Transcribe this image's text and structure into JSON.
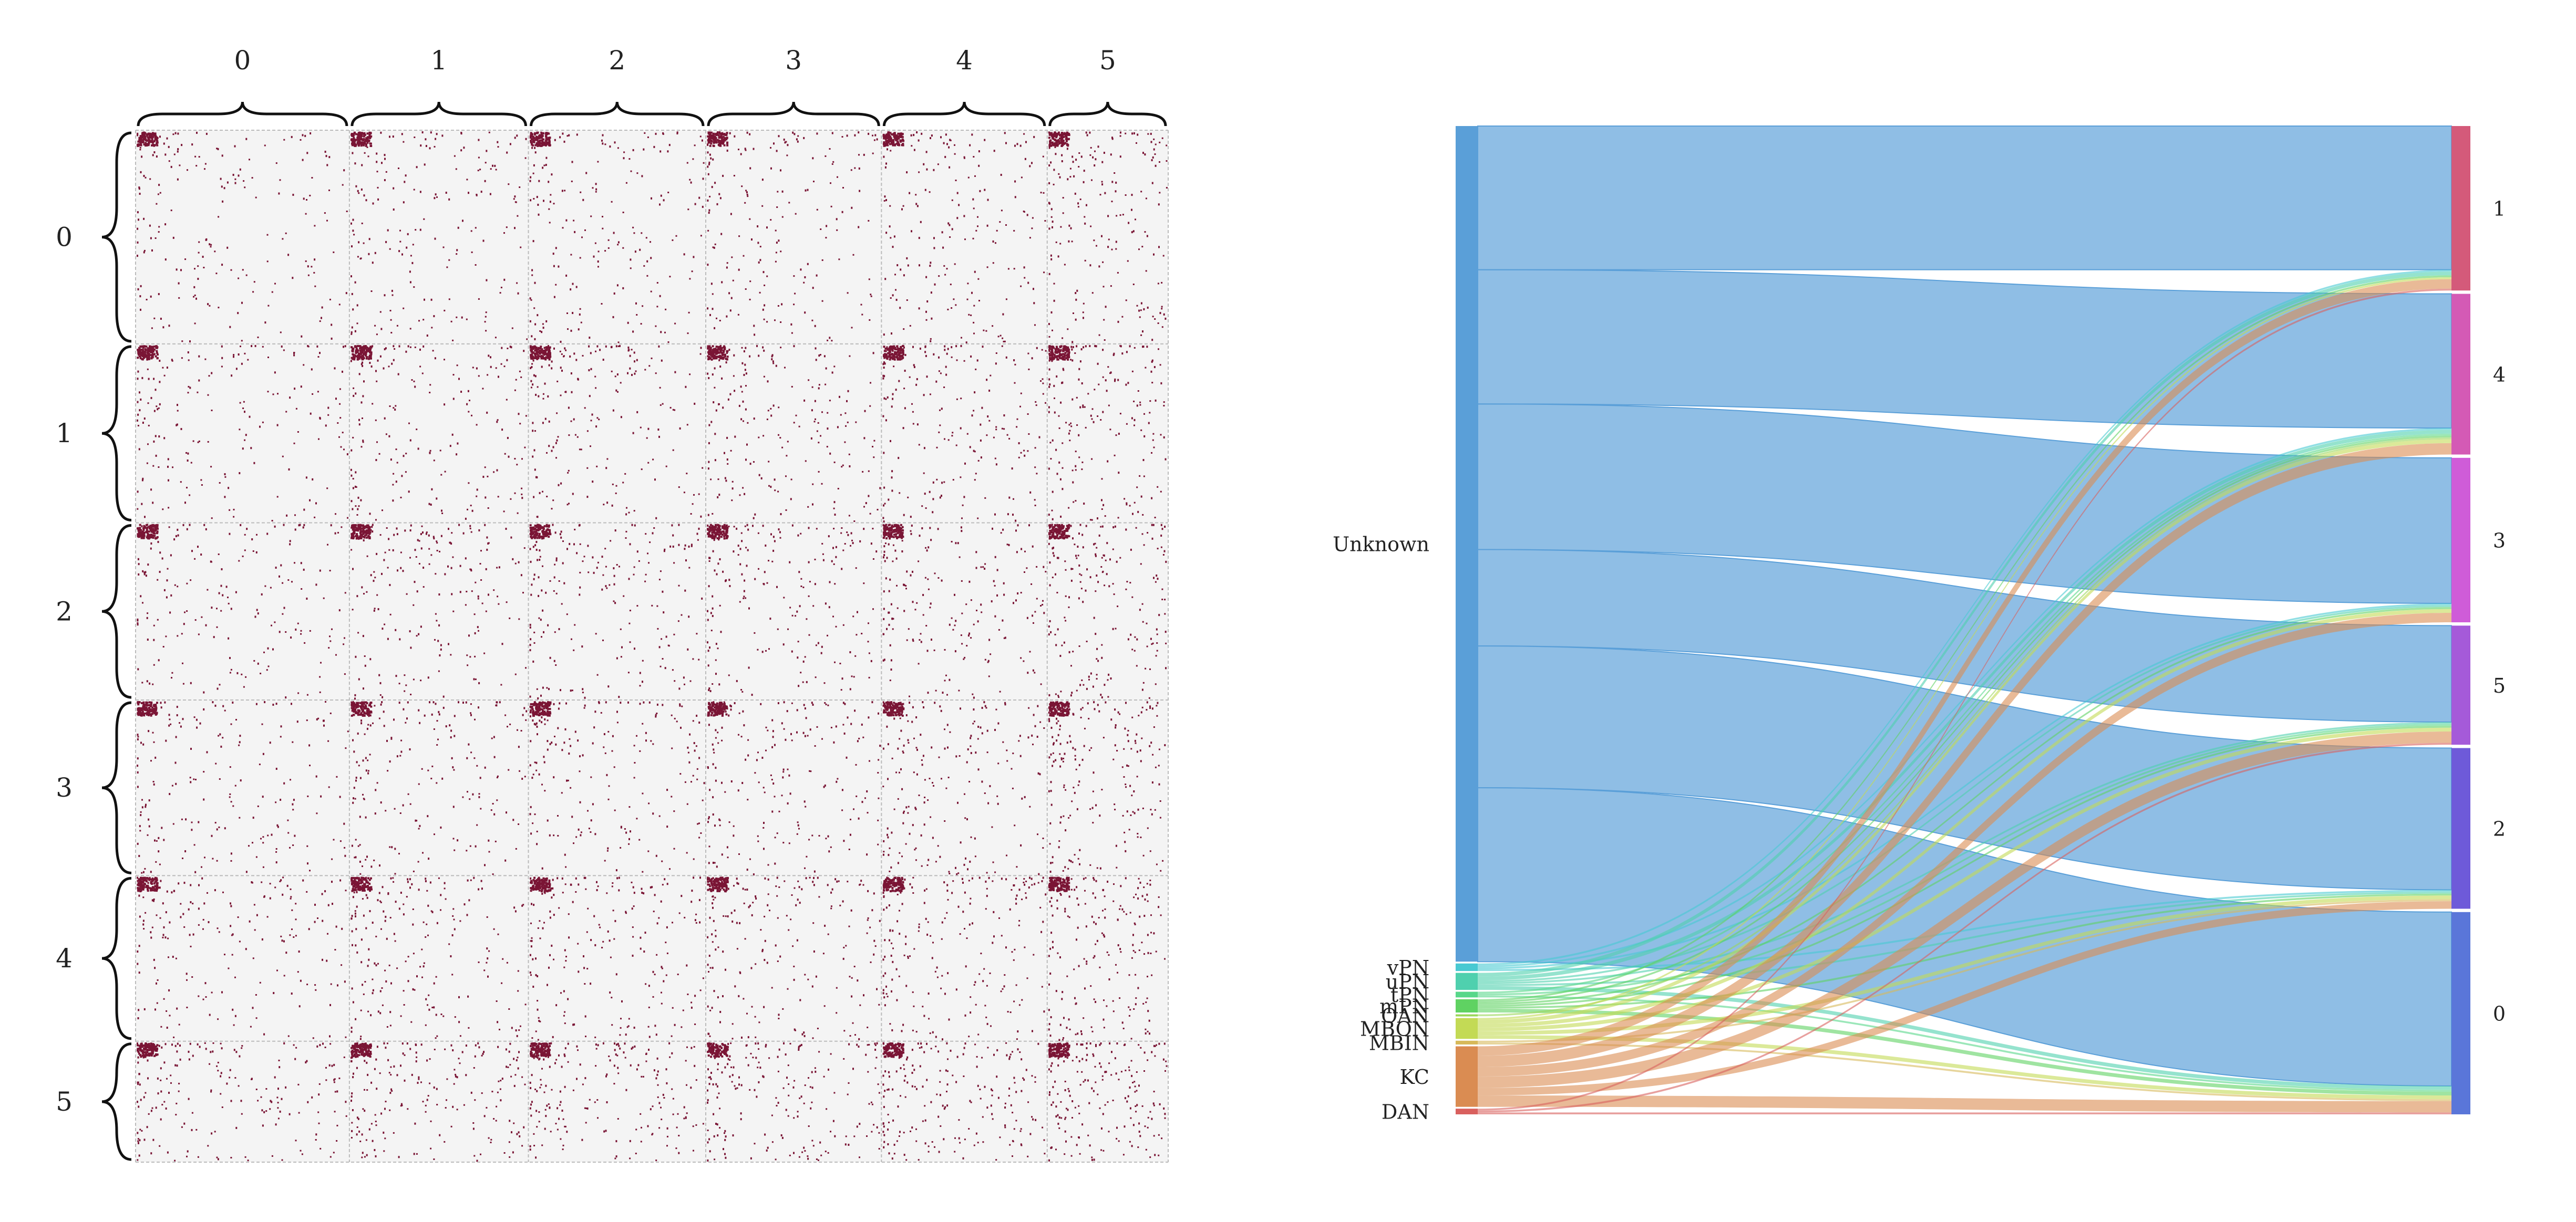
{
  "chart_data": [
    {
      "type": "heatmap",
      "title": "",
      "xlabel": "",
      "ylabel": "",
      "row_blocks": [
        "0",
        "1",
        "2",
        "3",
        "4",
        "5"
      ],
      "col_blocks": [
        "0",
        "1",
        "2",
        "3",
        "4",
        "5"
      ],
      "row_block_sizes": [
        129,
        108,
        107,
        106,
        100,
        73
      ],
      "col_block_sizes": [
        129,
        108,
        107,
        106,
        100,
        73
      ],
      "colors": {
        "marker": "#7a1535",
        "background": "#f4f4f4",
        "divider": "#bbbbbb"
      }
    },
    {
      "type": "sankey",
      "title": "",
      "sources": [
        {
          "name": "Unknown",
          "color": "#5a9fd8"
        },
        {
          "name": "vPN",
          "color": "#48c9d2"
        },
        {
          "name": "uPN",
          "color": "#4fd0ae"
        },
        {
          "name": "tPN",
          "color": "#58d78a"
        },
        {
          "name": "mPN",
          "color": "#5fd262"
        },
        {
          "name": "OAN",
          "color": "#9bd75a"
        },
        {
          "name": "MBON",
          "color": "#c3da55"
        },
        {
          "name": "MBIN",
          "color": "#d7b95a"
        },
        {
          "name": "KC",
          "color": "#da8c52"
        },
        {
          "name": "DAN",
          "color": "#d9605e"
        }
      ],
      "targets": [
        {
          "name": "1",
          "color": "#d45a7a"
        },
        {
          "name": "4",
          "color": "#d45ab5"
        },
        {
          "name": "3",
          "color": "#cf5cd8"
        },
        {
          "name": "5",
          "color": "#a55ad9"
        },
        {
          "name": "2",
          "color": "#6e5ad9"
        },
        {
          "name": "0",
          "color": "#5a76d9"
        }
      ],
      "links": [
        {
          "source": "Unknown",
          "target": "1",
          "value": 76
        },
        {
          "source": "Unknown",
          "target": "4",
          "value": 71
        },
        {
          "source": "Unknown",
          "target": "3",
          "value": 77
        },
        {
          "source": "Unknown",
          "target": "5",
          "value": 51
        },
        {
          "source": "Unknown",
          "target": "2",
          "value": 75
        },
        {
          "source": "Unknown",
          "target": "0",
          "value": 92
        },
        {
          "source": "vPN",
          "target": "1",
          "value": 1
        },
        {
          "source": "vPN",
          "target": "4",
          "value": 1
        },
        {
          "source": "vPN",
          "target": "3",
          "value": 1
        },
        {
          "source": "vPN",
          "target": "2",
          "value": 1
        },
        {
          "source": "uPN",
          "target": "1",
          "value": 2
        },
        {
          "source": "uPN",
          "target": "4",
          "value": 2
        },
        {
          "source": "uPN",
          "target": "3",
          "value": 1
        },
        {
          "source": "uPN",
          "target": "5",
          "value": 1
        },
        {
          "source": "uPN",
          "target": "2",
          "value": 1
        },
        {
          "source": "uPN",
          "target": "0",
          "value": 2
        },
        {
          "source": "tPN",
          "target": "4",
          "value": 1
        },
        {
          "source": "tPN",
          "target": "5",
          "value": 1
        },
        {
          "source": "tPN",
          "target": "0",
          "value": 1
        },
        {
          "source": "mPN",
          "target": "1",
          "value": 1
        },
        {
          "source": "mPN",
          "target": "4",
          "value": 1
        },
        {
          "source": "mPN",
          "target": "3",
          "value": 1
        },
        {
          "source": "mPN",
          "target": "5",
          "value": 1
        },
        {
          "source": "mPN",
          "target": "2",
          "value": 1
        },
        {
          "source": "mPN",
          "target": "0",
          "value": 2
        },
        {
          "source": "OAN",
          "target": "4",
          "value": 1
        },
        {
          "source": "MBON",
          "target": "1",
          "value": 1
        },
        {
          "source": "MBON",
          "target": "4",
          "value": 2
        },
        {
          "source": "MBON",
          "target": "3",
          "value": 2
        },
        {
          "source": "MBON",
          "target": "5",
          "value": 2
        },
        {
          "source": "MBON",
          "target": "2",
          "value": 2
        },
        {
          "source": "MBON",
          "target": "0",
          "value": 2
        },
        {
          "source": "MBIN",
          "target": "2",
          "value": 1
        },
        {
          "source": "MBIN",
          "target": "0",
          "value": 1
        },
        {
          "source": "KC",
          "target": "1",
          "value": 5
        },
        {
          "source": "KC",
          "target": "4",
          "value": 6
        },
        {
          "source": "KC",
          "target": "3",
          "value": 5
        },
        {
          "source": "KC",
          "target": "5",
          "value": 6
        },
        {
          "source": "KC",
          "target": "2",
          "value": 4
        },
        {
          "source": "KC",
          "target": "0",
          "value": 6
        },
        {
          "source": "DAN",
          "target": "1",
          "value": 1
        },
        {
          "source": "DAN",
          "target": "5",
          "value": 1
        },
        {
          "source": "DAN",
          "target": "0",
          "value": 1
        }
      ]
    }
  ]
}
